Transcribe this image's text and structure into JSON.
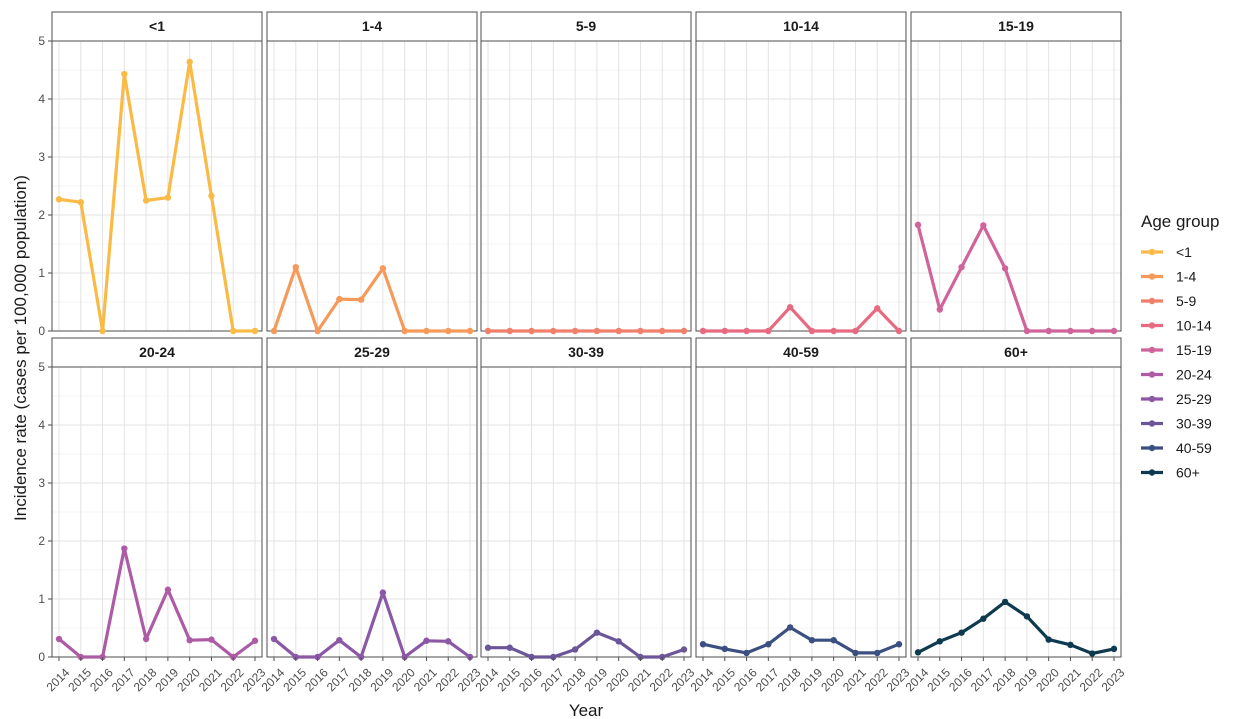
{
  "chart_data": {
    "type": "line",
    "layout": "facet-grid",
    "facet_rows": 2,
    "facet_cols": 5,
    "xlabel": "Year",
    "ylabel": "Incidence rate (cases per 100,000 population)",
    "ylim": [
      0,
      5
    ],
    "yticks": [
      0,
      1,
      2,
      3,
      4,
      5
    ],
    "x": [
      "2014",
      "2015",
      "2016",
      "2017",
      "2018",
      "2019",
      "2020",
      "2021",
      "2022",
      "2023"
    ],
    "grid": true,
    "legend": {
      "title": "Age group",
      "position": "right"
    },
    "series": [
      {
        "name": "<1",
        "color": "#F9BA46",
        "values": [
          2.27,
          2.22,
          0.0,
          4.43,
          2.25,
          2.3,
          4.64,
          2.33,
          0.0,
          0.0
        ]
      },
      {
        "name": "1-4",
        "color": "#F59A5B",
        "values": [
          0.0,
          1.1,
          0.0,
          0.55,
          0.54,
          1.08,
          0.0,
          0.0,
          0.0,
          0.0
        ]
      },
      {
        "name": "5-9",
        "color": "#F07F6B",
        "values": [
          0.0,
          0.0,
          0.0,
          0.0,
          0.0,
          0.0,
          0.0,
          0.0,
          0.0,
          0.0
        ]
      },
      {
        "name": "10-14",
        "color": "#E86A80",
        "values": [
          0.0,
          0.0,
          0.0,
          0.0,
          0.41,
          0.0,
          0.0,
          0.0,
          0.39,
          0.0
        ]
      },
      {
        "name": "15-19",
        "color": "#D0649A",
        "values": [
          1.83,
          0.37,
          1.1,
          1.82,
          1.08,
          0.0,
          0.0,
          0.0,
          0.0,
          0.0
        ]
      },
      {
        "name": "20-24",
        "color": "#AE5BA6",
        "values": [
          0.31,
          0.0,
          0.0,
          1.87,
          0.31,
          1.16,
          0.29,
          0.3,
          0.0,
          0.28
        ]
      },
      {
        "name": "25-29",
        "color": "#8B58A6",
        "values": [
          0.31,
          0.0,
          0.0,
          0.29,
          0.0,
          1.11,
          0.0,
          0.28,
          0.27,
          0.0
        ]
      },
      {
        "name": "30-39",
        "color": "#6A5698",
        "values": [
          0.16,
          0.16,
          0.0,
          0.0,
          0.13,
          0.42,
          0.27,
          0.0,
          0.0,
          0.13
        ]
      },
      {
        "name": "40-59",
        "color": "#3B5080",
        "values": [
          0.22,
          0.14,
          0.07,
          0.22,
          0.51,
          0.29,
          0.29,
          0.07,
          0.07,
          0.22
        ]
      },
      {
        "name": "60+",
        "color": "#0D3A4F",
        "values": [
          0.08,
          0.27,
          0.42,
          0.66,
          0.95,
          0.7,
          0.3,
          0.21,
          0.06,
          0.14
        ]
      }
    ]
  }
}
